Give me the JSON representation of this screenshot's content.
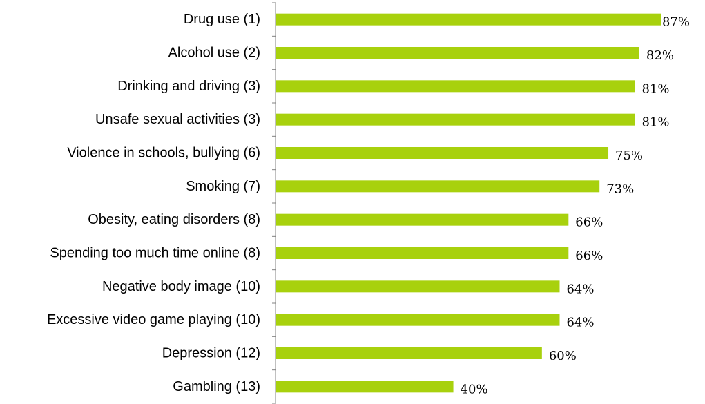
{
  "chart_data": {
    "type": "bar",
    "orientation": "horizontal",
    "categories": [
      "Drug use (1)",
      "Alcohol use (2)",
      "Drinking and driving (3)",
      "Unsafe sexual activities (3)",
      "Violence in schools, bullying (6)",
      "Smoking (7)",
      "Obesity, eating disorders (8)",
      "Spending too much time online (8)",
      "Negative body image (10)",
      "Excessive video game playing (10)",
      "Depression (12)",
      "Gambling (13)"
    ],
    "values": [
      87,
      82,
      81,
      81,
      75,
      73,
      66,
      66,
      64,
      64,
      60,
      40
    ],
    "value_labels": [
      "87%",
      "82%",
      "81%",
      "81%",
      "75%",
      "73%",
      "66%",
      "66%",
      "64%",
      "64%",
      "60%",
      "40%"
    ],
    "xlim": [
      0,
      100
    ],
    "title": "",
    "xlabel": "",
    "ylabel": "",
    "grid": false,
    "bar_color": "#a8d10d",
    "axis_color": "#808080"
  }
}
